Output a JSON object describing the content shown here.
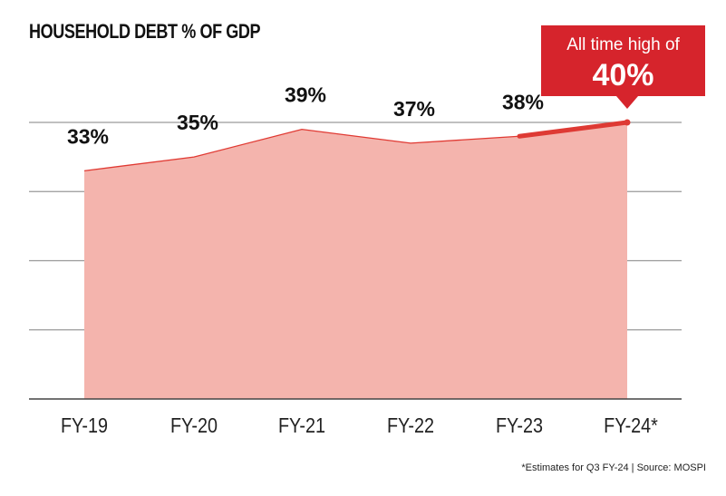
{
  "chart_data": {
    "type": "area",
    "title": "HOUSEHOLD DEBT % OF GDP",
    "categories": [
      "FY-19",
      "FY-20",
      "FY-21",
      "FY-22",
      "FY-23",
      "FY-24*"
    ],
    "values": [
      33,
      35,
      39,
      37,
      38,
      40
    ],
    "data_labels": [
      "33%",
      "35%",
      "39%",
      "37%",
      "38%",
      ""
    ],
    "ylim": [
      0,
      40
    ],
    "yticks": [
      0,
      10,
      20,
      30,
      40
    ],
    "grid": true,
    "colors": {
      "fill": "#f4b4ad",
      "line": "#e03a33",
      "highlight": "#de3a34",
      "callout": "#d6242c",
      "grid": "#9a9a9a",
      "axis": "#444444"
    },
    "annotation": {
      "line1": "All time high of",
      "line2": "40%",
      "category": "FY-24*"
    },
    "footnote": "*Estimates for Q3 FY-24 | Source: MOSPI"
  }
}
